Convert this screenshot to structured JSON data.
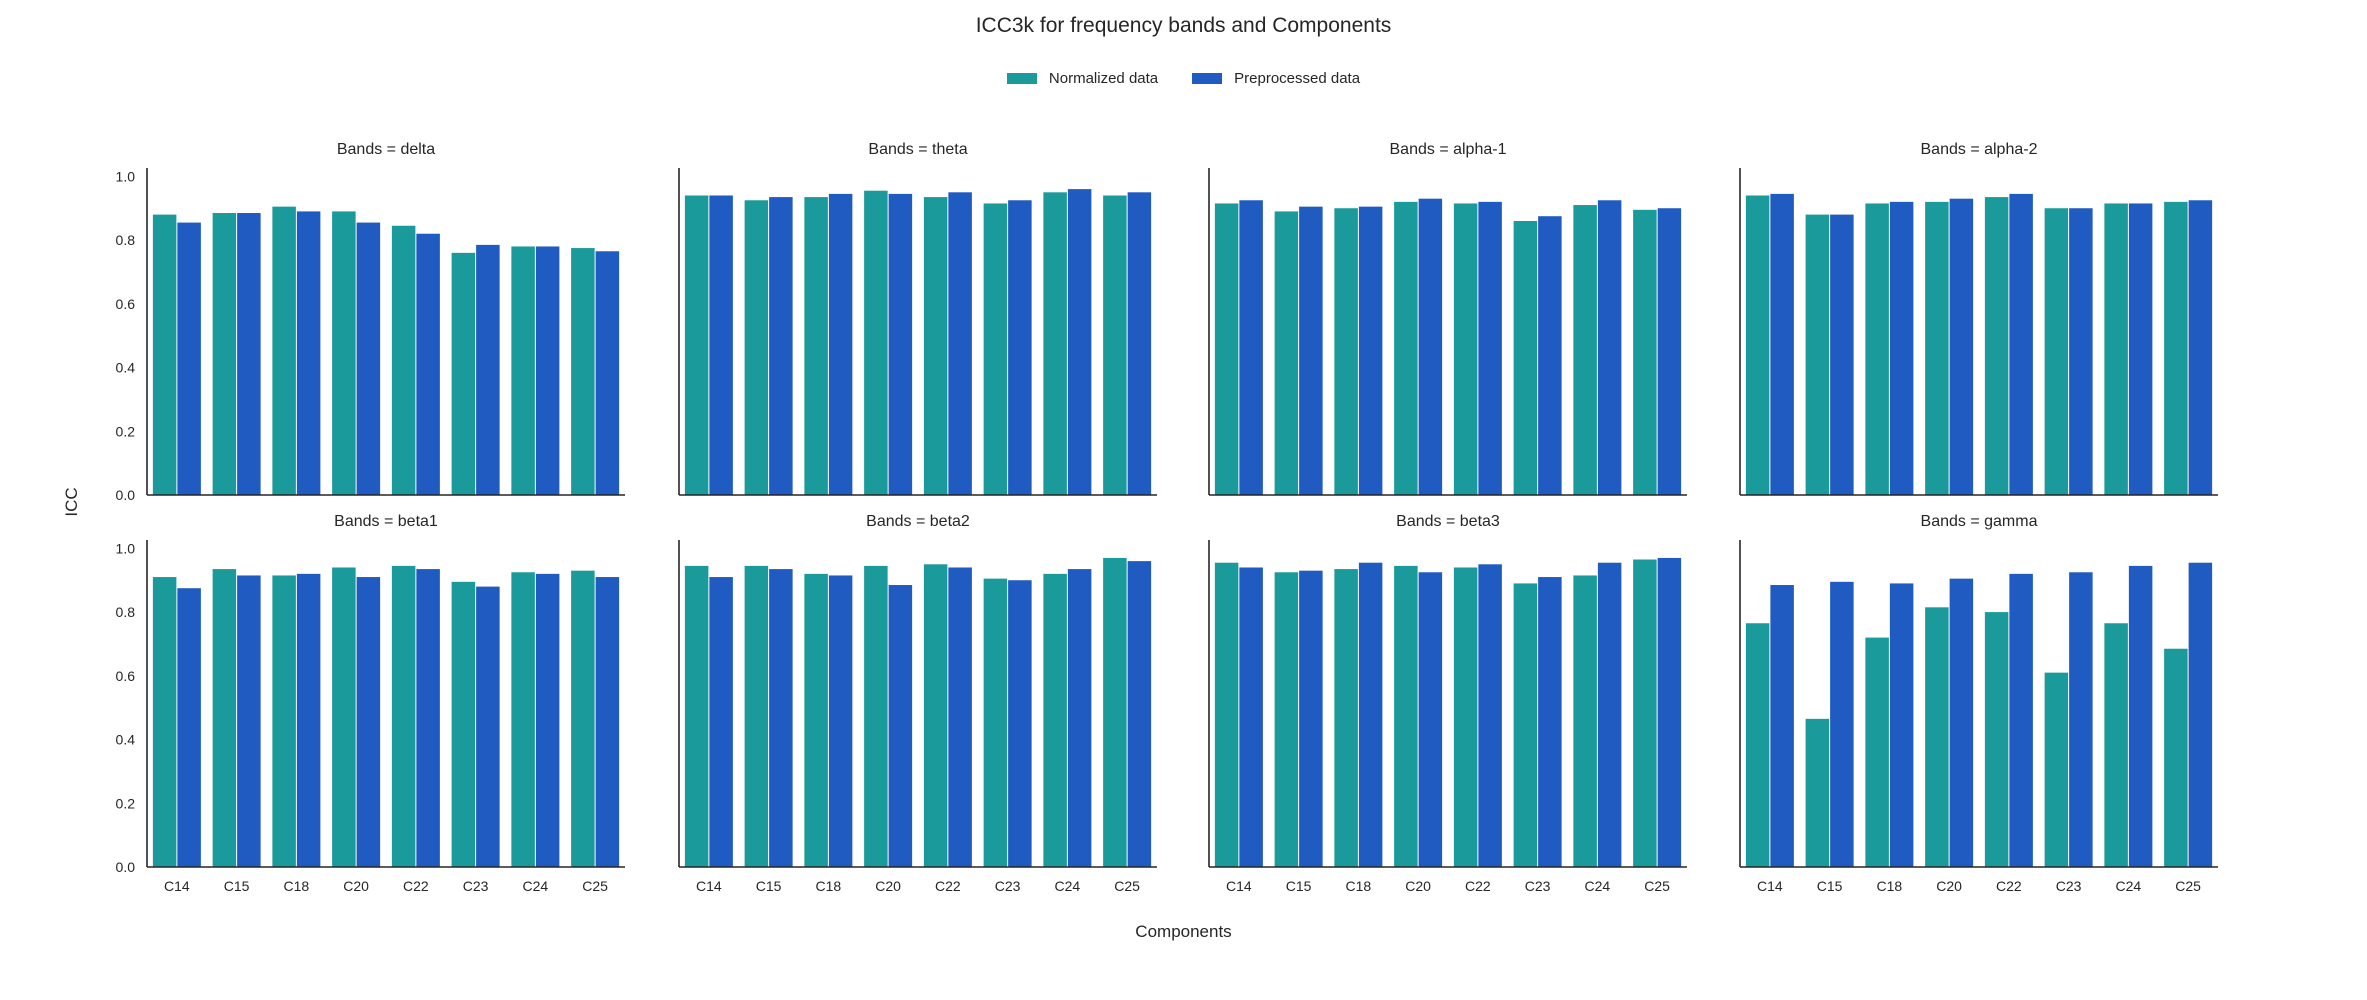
{
  "chart_data": {
    "type": "bar",
    "title": "ICC3k for frequency bands and Components",
    "xlabel": "Components",
    "ylabel": "ICC",
    "ylim": [
      0,
      1.02
    ],
    "yticks": [
      "0.0",
      "0.2",
      "0.4",
      "0.6",
      "0.8",
      "1.0"
    ],
    "grid": false,
    "legend_position": "top-center",
    "categories": [
      "C14",
      "C15",
      "C18",
      "C20",
      "C22",
      "C23",
      "C24",
      "C25"
    ],
    "series_names": [
      "Normalized data",
      "Preprocessed data"
    ],
    "colors": [
      "#1a9a9a",
      "#1f5bc0"
    ],
    "facets": [
      {
        "title": "Bands = delta",
        "normalized": [
          0.88,
          0.885,
          0.905,
          0.89,
          0.845,
          0.76,
          0.78,
          0.775
        ],
        "preprocessed": [
          0.855,
          0.885,
          0.89,
          0.855,
          0.82,
          0.785,
          0.78,
          0.765
        ]
      },
      {
        "title": "Bands = theta",
        "normalized": [
          0.94,
          0.925,
          0.935,
          0.955,
          0.935,
          0.915,
          0.95,
          0.94
        ],
        "preprocessed": [
          0.94,
          0.935,
          0.945,
          0.945,
          0.95,
          0.925,
          0.96,
          0.95
        ]
      },
      {
        "title": "Bands = alpha-1",
        "normalized": [
          0.915,
          0.89,
          0.9,
          0.92,
          0.915,
          0.86,
          0.91,
          0.895
        ],
        "preprocessed": [
          0.925,
          0.905,
          0.905,
          0.93,
          0.92,
          0.875,
          0.925,
          0.9
        ]
      },
      {
        "title": "Bands = alpha-2",
        "normalized": [
          0.94,
          0.88,
          0.915,
          0.92,
          0.935,
          0.9,
          0.915,
          0.92
        ],
        "preprocessed": [
          0.945,
          0.88,
          0.92,
          0.93,
          0.945,
          0.9,
          0.915,
          0.925
        ]
      },
      {
        "title": "Bands = beta1",
        "normalized": [
          0.91,
          0.935,
          0.915,
          0.94,
          0.945,
          0.895,
          0.925,
          0.93
        ],
        "preprocessed": [
          0.875,
          0.915,
          0.92,
          0.91,
          0.935,
          0.88,
          0.92,
          0.91
        ]
      },
      {
        "title": "Bands = beta2",
        "normalized": [
          0.945,
          0.945,
          0.92,
          0.945,
          0.95,
          0.905,
          0.92,
          0.97
        ],
        "preprocessed": [
          0.91,
          0.935,
          0.915,
          0.885,
          0.94,
          0.9,
          0.935,
          0.96
        ]
      },
      {
        "title": "Bands = beta3",
        "normalized": [
          0.955,
          0.925,
          0.935,
          0.945,
          0.94,
          0.89,
          0.915,
          0.965
        ],
        "preprocessed": [
          0.94,
          0.93,
          0.955,
          0.925,
          0.95,
          0.91,
          0.955,
          0.97
        ]
      },
      {
        "title": "Bands = gamma",
        "normalized": [
          0.765,
          0.465,
          0.72,
          0.815,
          0.8,
          0.61,
          0.765,
          0.685
        ],
        "preprocessed": [
          0.885,
          0.895,
          0.89,
          0.905,
          0.92,
          0.925,
          0.945,
          0.955
        ]
      }
    ]
  }
}
